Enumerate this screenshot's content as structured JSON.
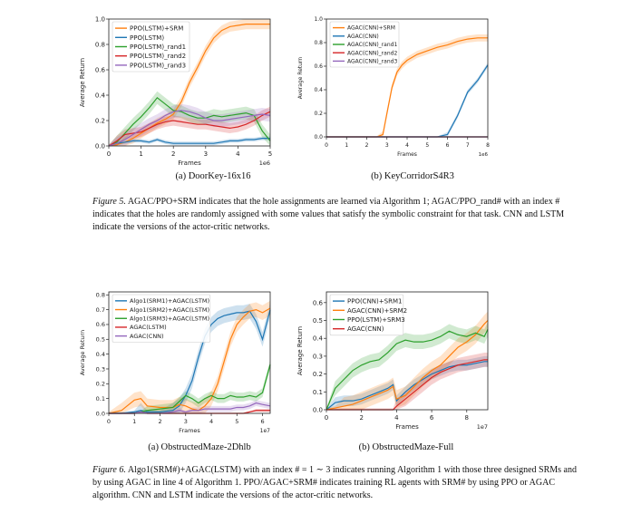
{
  "figure5": {
    "label": "Figure 5.",
    "text": "AGAC/PPO+SRM indicates that the hole assignments are learned via Algorithm 1; AGAC/PPO_rand# with an index # indicates that the holes are randomly assigned with some values that satisfy the symbolic constraint for that task. CNN and LSTM indicate the versions of the actor-critic networks."
  },
  "figure6": {
    "label": "Figure 6.",
    "text": "Algo1(SRM#)+AGAC(LSTM) with an index # = 1 ∼ 3 indicates running Algorithm 1 with those three designed SRMs and by using AGAC in line 4 of Algorithm 1. PPO/AGAC+SRM# indicates training RL agents with SRM# by using PPO or AGAC algorithm. CNN and LSTM indicate the versions of the actor-critic networks."
  },
  "chart_data": [
    {
      "id": "c1",
      "type": "line",
      "caption": "(a) DoorKey-16x16",
      "xlabel": "Frames",
      "ylabel": "Average Return",
      "x_multiplier": "1e6",
      "xlim": [
        0,
        5
      ],
      "ylim": [
        0,
        1.0
      ],
      "xticks": [
        0,
        1,
        2,
        3,
        4,
        5
      ],
      "yticks": [
        0.0,
        0.2,
        0.4,
        0.6,
        0.8,
        1.0
      ],
      "ytick_labels": [
        "0.0",
        "0.2",
        "0.4",
        "0.6",
        "0.8",
        "1.0"
      ],
      "legend_position": "upper-left",
      "grid": false,
      "x": [
        0,
        0.25,
        0.5,
        0.75,
        1.0,
        1.25,
        1.5,
        1.75,
        2.0,
        2.25,
        2.5,
        2.75,
        3.0,
        3.25,
        3.5,
        3.75,
        4.0,
        4.25,
        4.5,
        4.75,
        5.0
      ],
      "series": [
        {
          "name": "PPO(LSTM)+SRM",
          "color": "#ff7f0e",
          "values": [
            0.0,
            0.01,
            0.03,
            0.06,
            0.1,
            0.14,
            0.18,
            0.21,
            0.25,
            0.35,
            0.5,
            0.62,
            0.75,
            0.85,
            0.91,
            0.94,
            0.95,
            0.96,
            0.96,
            0.96,
            0.96
          ],
          "spread": 0.04
        },
        {
          "name": "PPO(LSTM)",
          "color": "#1f77b4",
          "values": [
            0.0,
            0.02,
            0.03,
            0.04,
            0.04,
            0.03,
            0.05,
            0.03,
            0.02,
            0.02,
            0.02,
            0.02,
            0.02,
            0.02,
            0.03,
            0.04,
            0.04,
            0.05,
            0.05,
            0.06,
            0.06
          ],
          "spread": 0.015
        },
        {
          "name": "PPO(LSTM)_rand1",
          "color": "#2ca02c",
          "values": [
            0.0,
            0.03,
            0.1,
            0.17,
            0.23,
            0.3,
            0.38,
            0.33,
            0.28,
            0.27,
            0.24,
            0.22,
            0.22,
            0.24,
            0.23,
            0.24,
            0.25,
            0.26,
            0.24,
            0.12,
            0.04
          ],
          "spread": 0.05
        },
        {
          "name": "PPO(LSTM)_rand2",
          "color": "#d62728",
          "values": [
            0.0,
            0.04,
            0.09,
            0.1,
            0.11,
            0.14,
            0.17,
            0.19,
            0.2,
            0.19,
            0.18,
            0.17,
            0.17,
            0.16,
            0.15,
            0.14,
            0.15,
            0.17,
            0.2,
            0.24,
            0.27
          ],
          "spread": 0.04
        },
        {
          "name": "PPO(LSTM)_rand3",
          "color": "#9467bd",
          "values": [
            0.0,
            0.02,
            0.05,
            0.09,
            0.13,
            0.17,
            0.2,
            0.24,
            0.27,
            0.28,
            0.27,
            0.25,
            0.22,
            0.2,
            0.2,
            0.21,
            0.22,
            0.23,
            0.24,
            0.25,
            0.24
          ],
          "spread": 0.05
        }
      ]
    },
    {
      "id": "c2",
      "type": "line",
      "caption": "(b) KeyCorridorS4R3",
      "xlabel": "Frames",
      "ylabel": "Average Return",
      "x_multiplier": "1e6",
      "xlim": [
        0,
        8
      ],
      "ylim": [
        0,
        1.0
      ],
      "xticks": [
        0,
        1,
        2,
        3,
        4,
        5,
        6,
        7,
        8
      ],
      "yticks": [
        0.0,
        0.2,
        0.4,
        0.6,
        0.8,
        1.0
      ],
      "ytick_labels": [
        "0.0",
        "0.2",
        "0.4",
        "0.6",
        "0.8",
        "1.0"
      ],
      "legend_position": "upper-left",
      "grid": false,
      "x": [
        0,
        0.5,
        1.0,
        1.5,
        2.0,
        2.5,
        2.8,
        3.0,
        3.25,
        3.5,
        3.75,
        4.0,
        4.5,
        5.0,
        5.5,
        6.0,
        6.5,
        7.0,
        7.5,
        8.0
      ],
      "series": [
        {
          "name": "AGAC(CNN)+SRM",
          "color": "#ff7f0e",
          "values": [
            0.0,
            0.0,
            0.0,
            0.0,
            0.0,
            0.0,
            0.02,
            0.2,
            0.42,
            0.55,
            0.61,
            0.65,
            0.7,
            0.73,
            0.76,
            0.78,
            0.81,
            0.83,
            0.84,
            0.84
          ],
          "spread": 0.03
        },
        {
          "name": "AGAC(CNN)",
          "color": "#1f77b4",
          "values": [
            0.0,
            0.0,
            0.0,
            0.0,
            0.0,
            0.0,
            0.0,
            0.0,
            0.0,
            0.0,
            0.0,
            0.0,
            0.0,
            0.0,
            0.0,
            0.02,
            0.18,
            0.38,
            0.48,
            0.61
          ],
          "spread": 0.02
        },
        {
          "name": "AGAC(CNN)_rand1",
          "color": "#2ca02c",
          "values": [
            0.0,
            0.0,
            0.0,
            0.0,
            0.0,
            0.0,
            0.0,
            0.0,
            0.0,
            0.0,
            0.0,
            0.0,
            0.0,
            0.0,
            0.0,
            0.0,
            0.0,
            0.0,
            0.0,
            0.0
          ],
          "spread": 0.0
        },
        {
          "name": "AGAC(CNN)_rand2",
          "color": "#d62728",
          "values": [
            0.0,
            0.0,
            0.0,
            0.0,
            0.0,
            0.0,
            0.0,
            0.0,
            0.0,
            0.0,
            0.0,
            0.0,
            0.0,
            0.0,
            0.0,
            0.0,
            0.0,
            0.0,
            0.0,
            0.0
          ],
          "spread": 0.0
        },
        {
          "name": "AGAC(CNN)_rand3",
          "color": "#9467bd",
          "values": [
            0.0,
            0.0,
            0.0,
            0.0,
            0.0,
            0.0,
            0.0,
            0.0,
            0.0,
            0.0,
            0.0,
            0.0,
            0.0,
            0.0,
            0.0,
            0.0,
            0.0,
            0.0,
            0.0,
            0.0
          ],
          "spread": 0.0
        }
      ]
    },
    {
      "id": "c3",
      "type": "line",
      "caption": "(a) ObstructedMaze-2Dhlb",
      "xlabel": "Frames",
      "ylabel": "Average Return",
      "x_multiplier": "1e7",
      "xlim": [
        0,
        6.3
      ],
      "ylim": [
        0,
        0.82
      ],
      "xticks": [
        0,
        1,
        2,
        3,
        4,
        5,
        6
      ],
      "yticks": [
        0.0,
        0.1,
        0.2,
        0.3,
        0.4,
        0.5,
        0.6,
        0.7,
        0.8
      ],
      "ytick_labels": [
        "0.0",
        "0.1",
        "0.2",
        "0.3",
        "0.4",
        "0.5",
        "0.6",
        "0.7",
        "0.8"
      ],
      "legend_position": "upper-left",
      "grid": false,
      "x": [
        0,
        0.5,
        1.0,
        1.25,
        1.5,
        2.0,
        2.5,
        2.75,
        3.0,
        3.25,
        3.5,
        3.75,
        4.0,
        4.25,
        4.5,
        4.75,
        5.0,
        5.25,
        5.5,
        5.75,
        6.0,
        6.3
      ],
      "series": [
        {
          "name": "Algo1(SRM1)+AGAC(LSTM)",
          "color": "#1f77b4",
          "values": [
            0.0,
            0.0,
            0.01,
            0.02,
            0.01,
            0.01,
            0.02,
            0.05,
            0.12,
            0.22,
            0.38,
            0.52,
            0.6,
            0.64,
            0.66,
            0.67,
            0.68,
            0.68,
            0.69,
            0.62,
            0.5,
            0.7
          ],
          "spread": 0.05
        },
        {
          "name": "Algo1(SRM2)+AGAC(LSTM)",
          "color": "#ff7f0e",
          "values": [
            0.0,
            0.02,
            0.09,
            0.1,
            0.05,
            0.04,
            0.04,
            0.06,
            0.05,
            0.03,
            0.02,
            0.05,
            0.1,
            0.2,
            0.35,
            0.5,
            0.6,
            0.65,
            0.69,
            0.7,
            0.68,
            0.71
          ],
          "spread": 0.05
        },
        {
          "name": "Algo1(SRM3)+AGAC(LSTM)",
          "color": "#2ca02c",
          "values": [
            0.0,
            0.0,
            0.0,
            0.01,
            0.02,
            0.03,
            0.04,
            0.08,
            0.12,
            0.1,
            0.07,
            0.1,
            0.12,
            0.1,
            0.1,
            0.12,
            0.11,
            0.11,
            0.12,
            0.11,
            0.14,
            0.33
          ],
          "spread": 0.03
        },
        {
          "name": "AGAC(LSTM)",
          "color": "#d62728",
          "values": [
            0.0,
            0.0,
            0.0,
            0.01,
            0.0,
            0.0,
            0.0,
            0.0,
            0.0,
            0.0,
            0.0,
            0.0,
            0.0,
            0.0,
            0.0,
            0.0,
            0.0,
            0.0,
            0.01,
            0.02,
            0.02,
            0.02
          ],
          "spread": 0.01
        },
        {
          "name": "AGAC(CNN)",
          "color": "#9467bd",
          "values": [
            0.0,
            0.0,
            0.0,
            0.01,
            0.0,
            0.0,
            0.01,
            0.02,
            0.01,
            0.02,
            0.02,
            0.03,
            0.03,
            0.03,
            0.03,
            0.03,
            0.04,
            0.04,
            0.05,
            0.07,
            0.06,
            0.05
          ],
          "spread": 0.02
        }
      ]
    },
    {
      "id": "c4",
      "type": "line",
      "caption": "(b) ObstructedMaze-Full",
      "xlabel": "Frames",
      "ylabel": "Average Return",
      "x_multiplier": "1e7",
      "xlim": [
        0,
        9.2
      ],
      "ylim": [
        0,
        0.66
      ],
      "xticks": [
        0,
        2,
        4,
        6,
        8
      ],
      "yticks": [
        0.0,
        0.1,
        0.2,
        0.3,
        0.4,
        0.5,
        0.6
      ],
      "ytick_labels": [
        "0.0",
        "0.1",
        "0.2",
        "0.3",
        "0.4",
        "0.5",
        "0.6"
      ],
      "legend_position": "upper-left",
      "grid": false,
      "x": [
        0,
        0.5,
        1.0,
        1.5,
        2.0,
        2.5,
        3.0,
        3.5,
        3.8,
        4.0,
        4.5,
        5.0,
        5.5,
        6.0,
        6.5,
        7.0,
        7.5,
        8.0,
        8.5,
        9.0,
        9.2
      ],
      "series": [
        {
          "name": "PPO(CNN)+SRM1",
          "color": "#1f77b4",
          "values": [
            0.0,
            0.04,
            0.05,
            0.05,
            0.06,
            0.08,
            0.1,
            0.12,
            0.14,
            0.05,
            0.1,
            0.14,
            0.17,
            0.2,
            0.22,
            0.24,
            0.25,
            0.25,
            0.26,
            0.27,
            0.27
          ],
          "spread": 0.03
        },
        {
          "name": "AGAC(CNN)+SRM2",
          "color": "#ff7f0e",
          "values": [
            0.0,
            0.01,
            0.02,
            0.03,
            0.05,
            0.07,
            0.09,
            0.11,
            0.13,
            0.06,
            0.08,
            0.13,
            0.18,
            0.22,
            0.25,
            0.3,
            0.35,
            0.38,
            0.42,
            0.48,
            0.5
          ],
          "spread": 0.05
        },
        {
          "name": "PPO(LSTM)+SRM3",
          "color": "#2ca02c",
          "values": [
            0.0,
            0.12,
            0.17,
            0.22,
            0.25,
            0.27,
            0.28,
            0.32,
            0.35,
            0.37,
            0.39,
            0.38,
            0.38,
            0.39,
            0.41,
            0.44,
            0.42,
            0.41,
            0.43,
            0.41,
            0.45
          ],
          "spread": 0.04
        },
        {
          "name": "AGAC(CNN)",
          "color": "#d62728",
          "values": [
            0.0,
            0.0,
            0.0,
            0.0,
            0.0,
            0.0,
            0.0,
            0.0,
            0.0,
            0.02,
            0.06,
            0.1,
            0.14,
            0.18,
            0.21,
            0.23,
            0.25,
            0.26,
            0.27,
            0.28,
            0.28
          ],
          "spread": 0.04
        }
      ]
    }
  ]
}
